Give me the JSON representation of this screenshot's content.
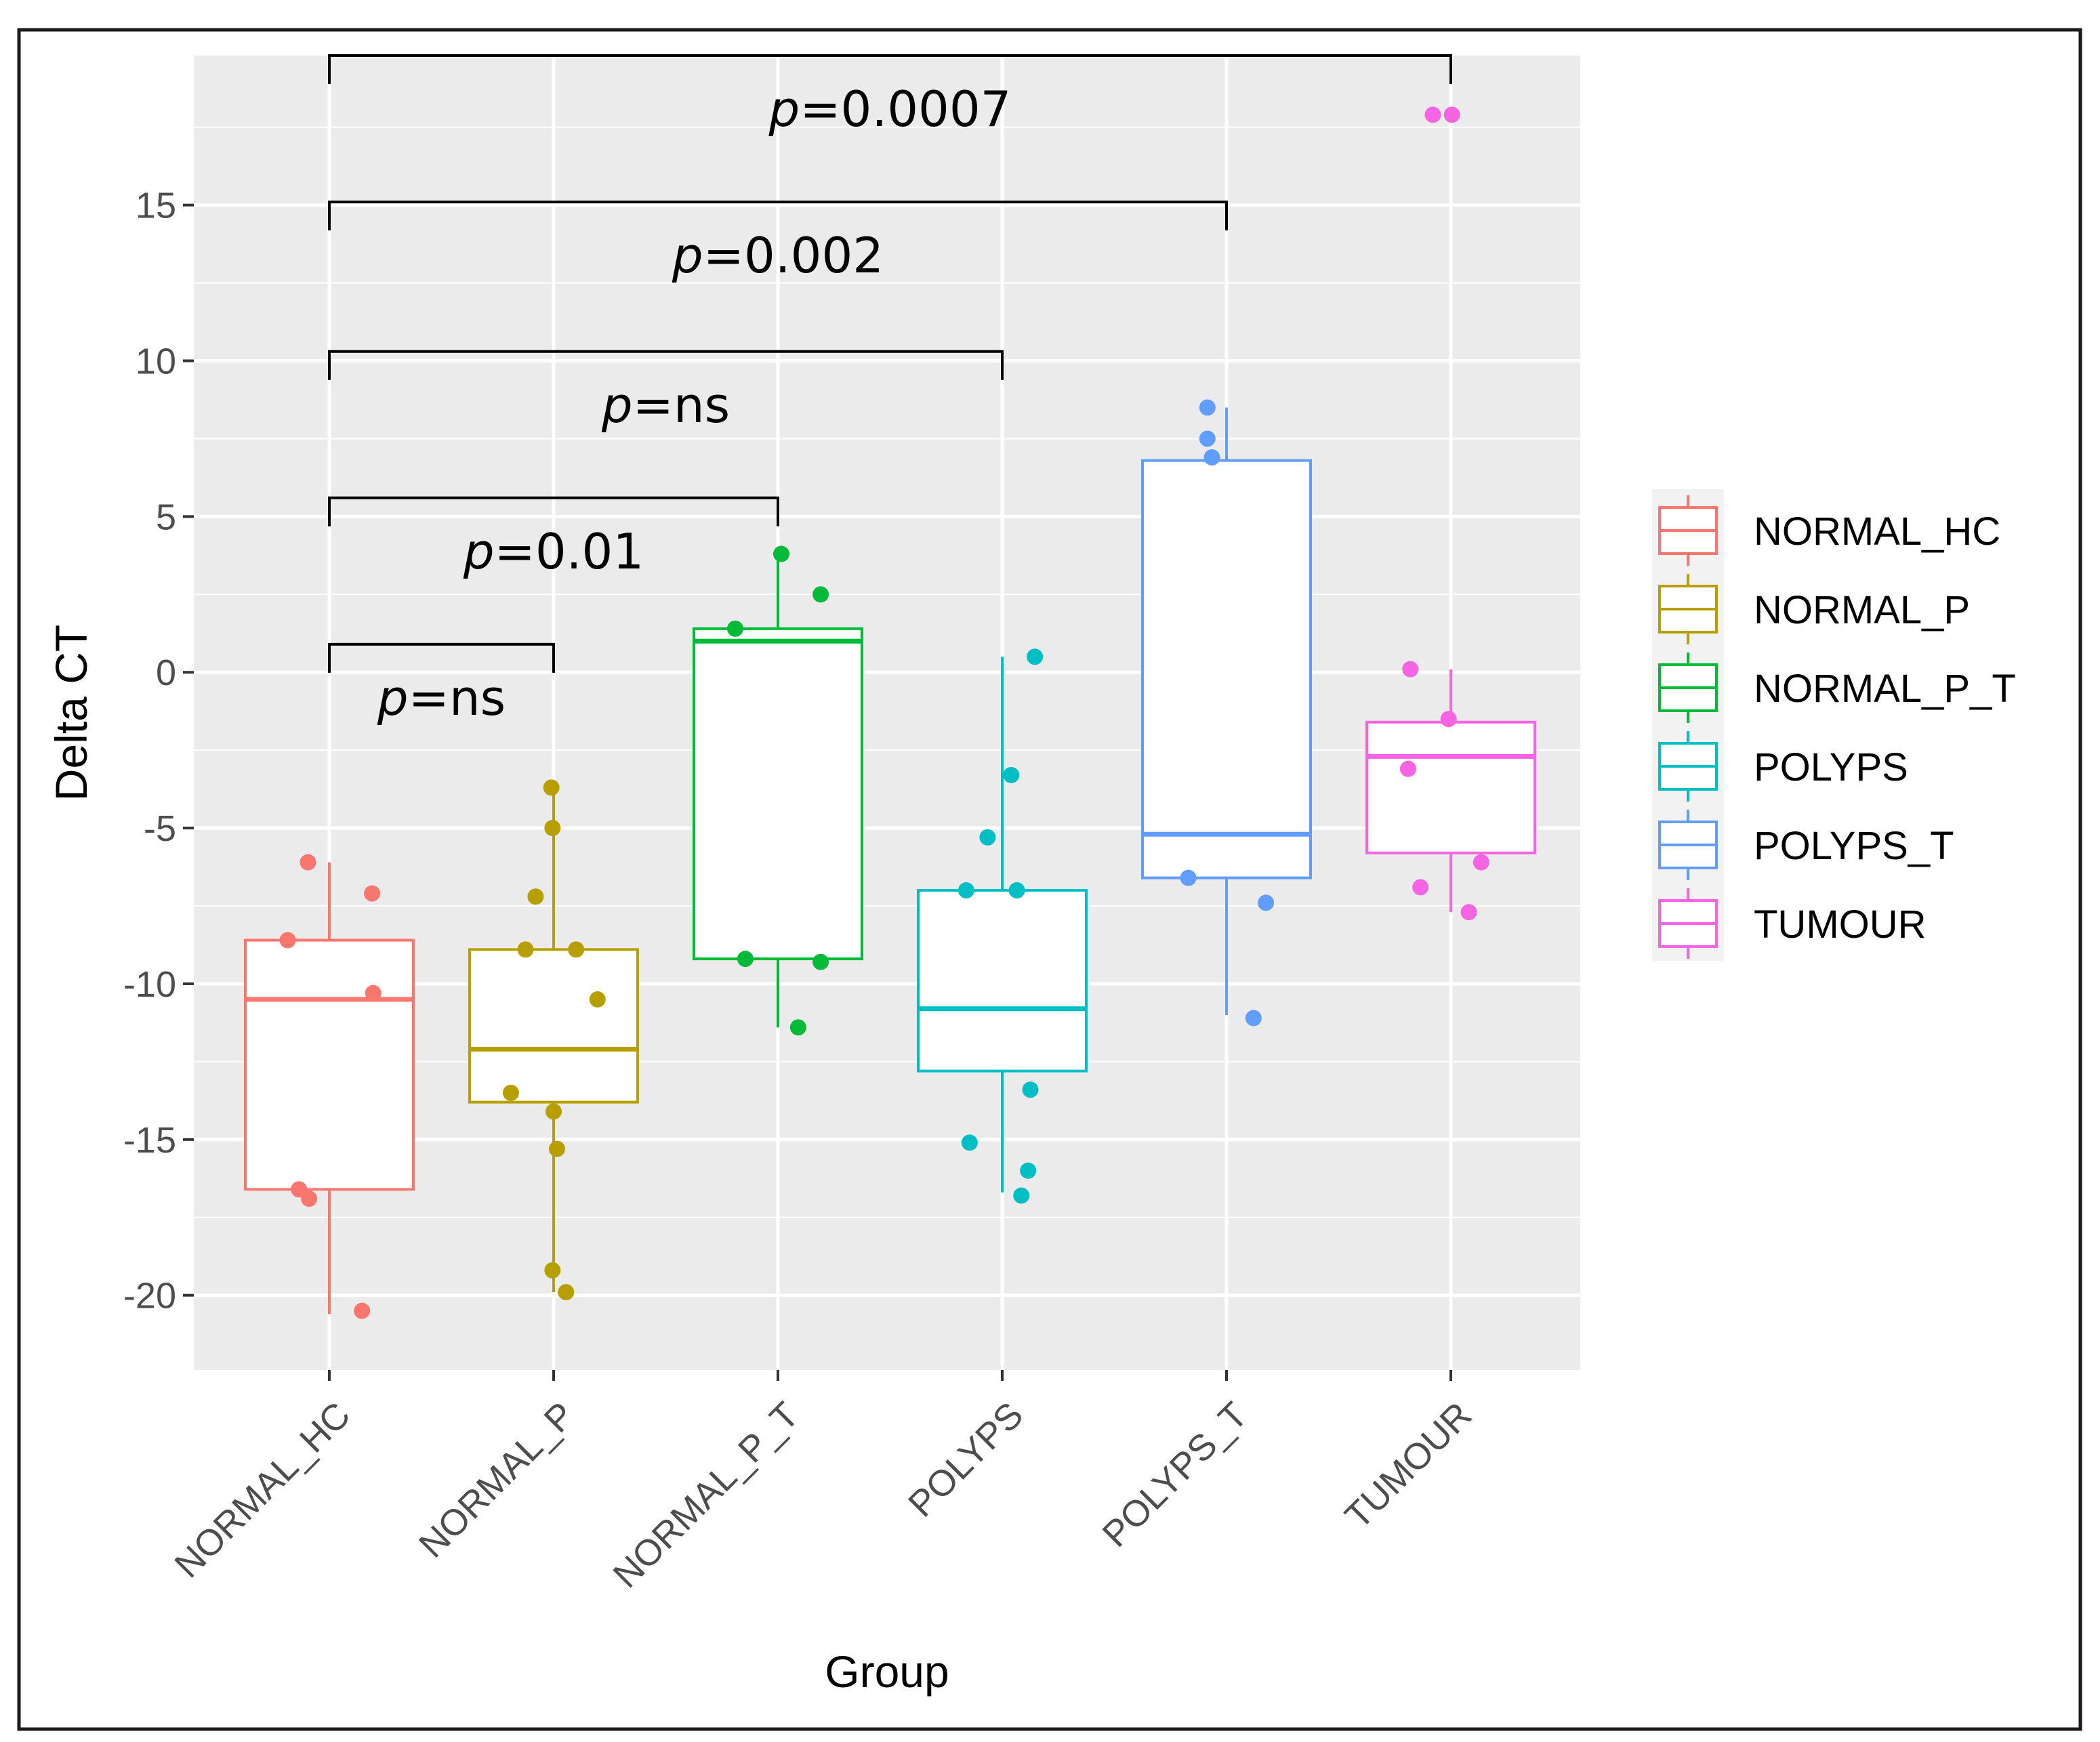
{
  "chart_data": {
    "type": "boxplot",
    "xlabel": "Group",
    "ylabel": "Delta CT",
    "ylim": [
      -22.4,
      19.8
    ],
    "yticks": [
      15,
      10,
      5,
      0,
      -5,
      -10,
      -15,
      -20
    ],
    "ytick_labels": [
      "15",
      "10",
      "5",
      "0",
      "-5",
      "-10",
      "-15",
      "-20"
    ],
    "categories": [
      "NORMAL_HC",
      "NORMAL_P",
      "NORMAL_P_T",
      "POLYPS",
      "POLYPS_T",
      "TUMOUR"
    ],
    "legend_position": "right",
    "groups": [
      {
        "name": "NORMAL_HC",
        "color": "#F8766D",
        "whisker_low": -20.6,
        "q1": -16.6,
        "median": -10.5,
        "q3": -8.6,
        "whisker_high": -6.1,
        "points": [
          [
            -0.19,
            -6.1
          ],
          [
            0.38,
            -7.1
          ],
          [
            -0.37,
            -8.6
          ],
          [
            0.39,
            -10.3
          ],
          [
            -0.27,
            -16.6
          ],
          [
            -0.18,
            -16.9
          ],
          [
            0.29,
            -20.5
          ]
        ]
      },
      {
        "name": "NORMAL_P",
        "color": "#B79F00",
        "whisker_low": -19.9,
        "q1": -13.8,
        "median": -12.1,
        "q3": -8.9,
        "whisker_high": -3.7,
        "points": [
          [
            -0.02,
            -3.7
          ],
          [
            -0.01,
            -5.0
          ],
          [
            -0.16,
            -7.2
          ],
          [
            -0.25,
            -8.9
          ],
          [
            0.2,
            -8.9
          ],
          [
            0.39,
            -10.5
          ],
          [
            -0.38,
            -13.5
          ],
          [
            0.0,
            -14.1
          ],
          [
            0.03,
            -15.3
          ],
          [
            -0.01,
            -19.2
          ],
          [
            0.11,
            -19.9
          ]
        ]
      },
      {
        "name": "NORMAL_P_T",
        "color": "#00BA38",
        "whisker_low": -11.4,
        "q1": -9.2,
        "median": 1.0,
        "q3": 1.4,
        "whisker_high": 3.8,
        "points": [
          [
            0.03,
            3.8
          ],
          [
            0.38,
            2.5
          ],
          [
            -0.38,
            1.4
          ],
          [
            -0.29,
            -9.2
          ],
          [
            0.38,
            -9.3
          ],
          [
            0.18,
            -11.4
          ]
        ]
      },
      {
        "name": "POLYPS",
        "color": "#00BFC4",
        "whisker_low": -16.7,
        "q1": -12.8,
        "median": -10.8,
        "q3": -7.0,
        "whisker_high": 0.5,
        "points": [
          [
            0.29,
            0.5
          ],
          [
            0.08,
            -3.3
          ],
          [
            -0.13,
            -5.3
          ],
          [
            -0.32,
            -7.0
          ],
          [
            0.13,
            -7.0
          ],
          [
            0.25,
            -13.4
          ],
          [
            -0.29,
            -15.1
          ],
          [
            0.23,
            -16.0
          ],
          [
            0.17,
            -16.8
          ]
        ]
      },
      {
        "name": "POLYPS_T",
        "color": "#619CFF",
        "whisker_low": -11.0,
        "q1": -6.6,
        "median": -5.2,
        "q3": 6.8,
        "whisker_high": 8.5,
        "points": [
          [
            -0.17,
            8.5
          ],
          [
            -0.17,
            7.5
          ],
          [
            -0.13,
            6.9
          ],
          [
            -0.34,
            -6.6
          ],
          [
            0.35,
            -7.4
          ],
          [
            0.24,
            -11.1
          ]
        ]
      },
      {
        "name": "TUMOUR",
        "color": "#F564E3",
        "whisker_low": -7.7,
        "q1": -5.8,
        "median": -2.7,
        "q3": -1.6,
        "whisker_high": 0.1,
        "points": [
          [
            -0.16,
            17.9
          ],
          [
            0.01,
            17.9
          ],
          [
            -0.36,
            0.1
          ],
          [
            -0.02,
            -1.5
          ],
          [
            -0.38,
            -3.1
          ],
          [
            -0.27,
            -6.9
          ],
          [
            0.27,
            -6.1
          ],
          [
            0.16,
            -7.7
          ]
        ]
      }
    ],
    "annotations": [
      {
        "from": "NORMAL_HC",
        "to": "NORMAL_P",
        "y": 0.9,
        "label": "p=ns",
        "label_y": -0.8
      },
      {
        "from": "NORMAL_HC",
        "to": "NORMAL_P_T",
        "y": 5.6,
        "label": "p=0.01",
        "label_y": 3.9
      },
      {
        "from": "NORMAL_HC",
        "to": "POLYPS",
        "y": 10.3,
        "label": "p=ns",
        "label_y": 8.6
      },
      {
        "from": "NORMAL_HC",
        "to": "POLYPS_T",
        "y": 15.1,
        "label": "p=0.002",
        "label_y": 13.4
      },
      {
        "from": "NORMAL_HC",
        "to": "TUMOUR",
        "y": 19.8,
        "label": "p=0.0007",
        "label_y": 18.1
      }
    ]
  }
}
